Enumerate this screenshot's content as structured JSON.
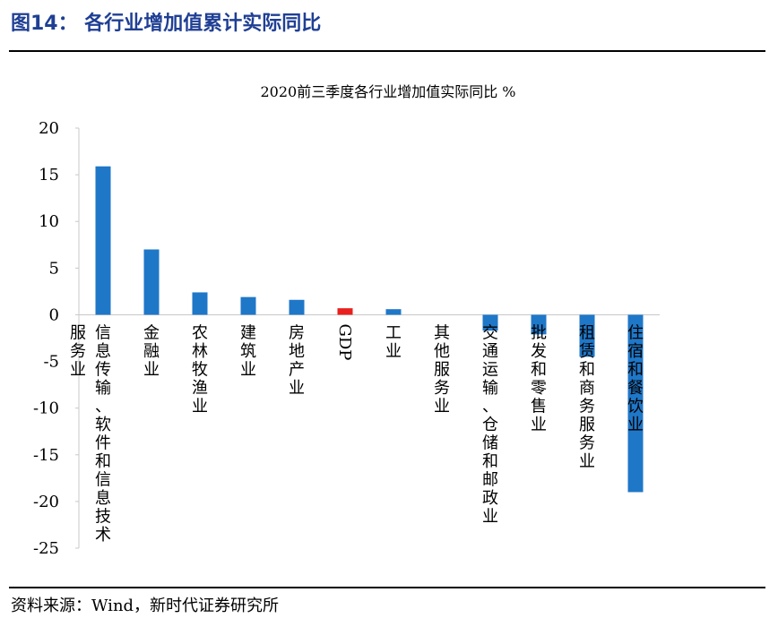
{
  "figure": {
    "title": "图14： 各行业增加值累计实际同比",
    "source": "资料来源：Wind，新时代证券研究所"
  },
  "chart_data": {
    "type": "bar",
    "title": "2020前三季度各行业增加值实际同比 %",
    "categories": [
      "信息传输、软件和信息技术服务业",
      "金融业",
      "农林牧渔业",
      "建筑业",
      "房地产业",
      "GDP",
      "工业",
      "其他服务业",
      "交通运输、仓储和邮政业",
      "批发和零售业",
      "租赁和商务服务业",
      "住宿和餐饮业"
    ],
    "values": [
      15.9,
      7.0,
      2.4,
      1.9,
      1.6,
      0.7,
      0.6,
      0.0,
      -1.7,
      -2.1,
      -4.5,
      -19.0
    ],
    "colors": [
      "#1f77c8",
      "#1f77c8",
      "#1f77c8",
      "#1f77c8",
      "#1f77c8",
      "#e8201e",
      "#1f77c8",
      "#1f77c8",
      "#1f77c8",
      "#1f77c8",
      "#1f77c8",
      "#1f77c8"
    ],
    "bar_color": "#1f77c8",
    "highlight_color": "#e8201e",
    "ylim": [
      -25,
      20
    ],
    "yticks": [
      "20",
      "15",
      "10",
      "5",
      "0",
      "-5",
      "-10",
      "-15",
      "-20",
      "-25"
    ],
    "grid": false,
    "legend": "none"
  }
}
